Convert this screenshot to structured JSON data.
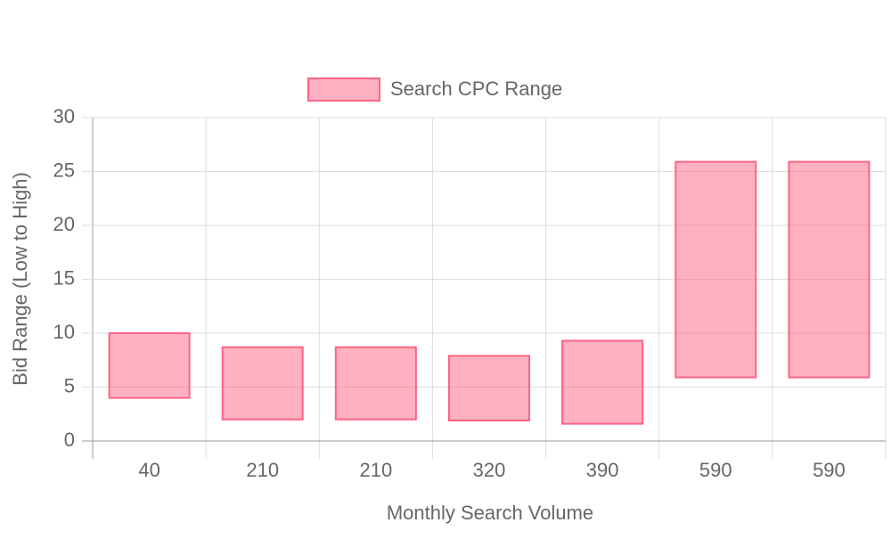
{
  "chart_data": {
    "type": "floating-bar",
    "x_label": "Monthly Search Volume",
    "y_label": "Bid Range (Low to High)",
    "categories": [
      "40",
      "210",
      "210",
      "320",
      "390",
      "590",
      "590"
    ],
    "series": [
      {
        "name": "Search CPC Range",
        "color": "#ff6384",
        "values": [
          [
            4,
            10
          ],
          [
            2,
            8.7
          ],
          [
            2,
            8.7
          ],
          [
            1.9,
            7.9
          ],
          [
            1.6,
            9.3
          ],
          [
            5.9,
            25.9
          ],
          [
            5.9,
            25.9
          ]
        ]
      }
    ],
    "ylim": [
      0,
      30
    ],
    "yticks": [
      0,
      5,
      10,
      15,
      20,
      25,
      30
    ],
    "grid": true,
    "legend": "top"
  }
}
